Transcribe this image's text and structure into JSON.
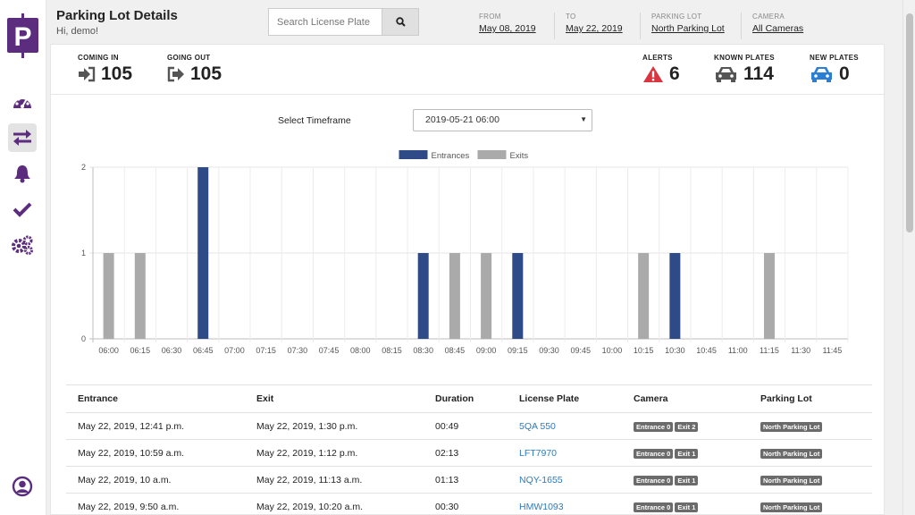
{
  "header": {
    "title": "Parking Lot Details",
    "greeting": "Hi, demo!",
    "search_placeholder": "Search License Plate",
    "filters": [
      {
        "label": "FROM",
        "value": "May 08, 2019"
      },
      {
        "label": "TO",
        "value": "May 22, 2019"
      },
      {
        "label": "PARKING LOT",
        "value": "North Parking Lot"
      },
      {
        "label": "CAMERA",
        "value": "All Cameras"
      }
    ]
  },
  "stats": {
    "coming_in": {
      "label": "COMING IN",
      "value": "105"
    },
    "going_out": {
      "label": "GOING OUT",
      "value": "105"
    },
    "alerts": {
      "label": "ALERTS",
      "value": "6"
    },
    "known_plates": {
      "label": "KNOWN PLATES",
      "value": "114"
    },
    "new_plates": {
      "label": "NEW PLATES",
      "value": "0"
    }
  },
  "timeframe": {
    "label": "Select Timeframe",
    "selected": "2019-05-21 06:00"
  },
  "colors": {
    "brand": "#5c2d7f",
    "entrances": "#2e4a87",
    "exits": "#aaaaaa",
    "alert": "#d9343f",
    "new_plates": "#2a7fd4",
    "link": "#2b7bbf"
  },
  "chart_data": {
    "type": "bar",
    "categories": [
      "06:00",
      "06:15",
      "06:30",
      "06:45",
      "07:00",
      "07:15",
      "07:30",
      "07:45",
      "08:00",
      "08:15",
      "08:30",
      "08:45",
      "09:00",
      "09:15",
      "09:30",
      "09:45",
      "10:00",
      "10:15",
      "10:30",
      "10:45",
      "11:00",
      "11:15",
      "11:30",
      "11:45"
    ],
    "series": [
      {
        "name": "Entrances",
        "values": [
          0,
          0,
          0,
          2,
          0,
          0,
          0,
          0,
          0,
          0,
          1,
          0,
          0,
          1,
          0,
          0,
          0,
          0,
          1,
          0,
          0,
          0,
          0,
          0
        ]
      },
      {
        "name": "Exits",
        "values": [
          1,
          1,
          0,
          0,
          0,
          0,
          0,
          0,
          0,
          0,
          0,
          1,
          1,
          0,
          0,
          0,
          0,
          1,
          0,
          0,
          0,
          1,
          0,
          0
        ]
      }
    ],
    "ylim": [
      0,
      2
    ],
    "yticks": [
      "0",
      "1",
      "2"
    ],
    "grid": true,
    "legend": "top-center"
  },
  "table": {
    "columns": [
      "Entrance",
      "Exit",
      "Duration",
      "License Plate",
      "Camera",
      "Parking Lot"
    ],
    "rows": [
      {
        "entrance": "May 22, 2019, 12:41 p.m.",
        "exit": "May 22, 2019, 1:30 p.m.",
        "duration": "00:49",
        "plate": "5QA 550",
        "cam_in": "Entrance 0",
        "cam_out": "Exit 2",
        "lot": "North Parking Lot"
      },
      {
        "entrance": "May 22, 2019, 10:59 a.m.",
        "exit": "May 22, 2019, 1:12 p.m.",
        "duration": "02:13",
        "plate": "LFT7970",
        "cam_in": "Entrance 0",
        "cam_out": "Exit 1",
        "lot": "North Parking Lot"
      },
      {
        "entrance": "May 22, 2019, 10 a.m.",
        "exit": "May 22, 2019, 11:13 a.m.",
        "duration": "01:13",
        "plate": "NQY-1655",
        "cam_in": "Entrance 0",
        "cam_out": "Exit 1",
        "lot": "North Parking Lot"
      },
      {
        "entrance": "May 22, 2019, 9:50 a.m.",
        "exit": "May 22, 2019, 10:20 a.m.",
        "duration": "00:30",
        "plate": "HMW1093",
        "cam_in": "Entrance 0",
        "cam_out": "Exit 1",
        "lot": "North Parking Lot"
      }
    ]
  },
  "sidebar": {
    "items": [
      {
        "icon": "dashboard-icon"
      },
      {
        "icon": "transfer-icon"
      },
      {
        "icon": "bell-icon"
      },
      {
        "icon": "check-icon"
      },
      {
        "icon": "settings-icon"
      }
    ],
    "profile_icon": "user-circle-icon"
  }
}
